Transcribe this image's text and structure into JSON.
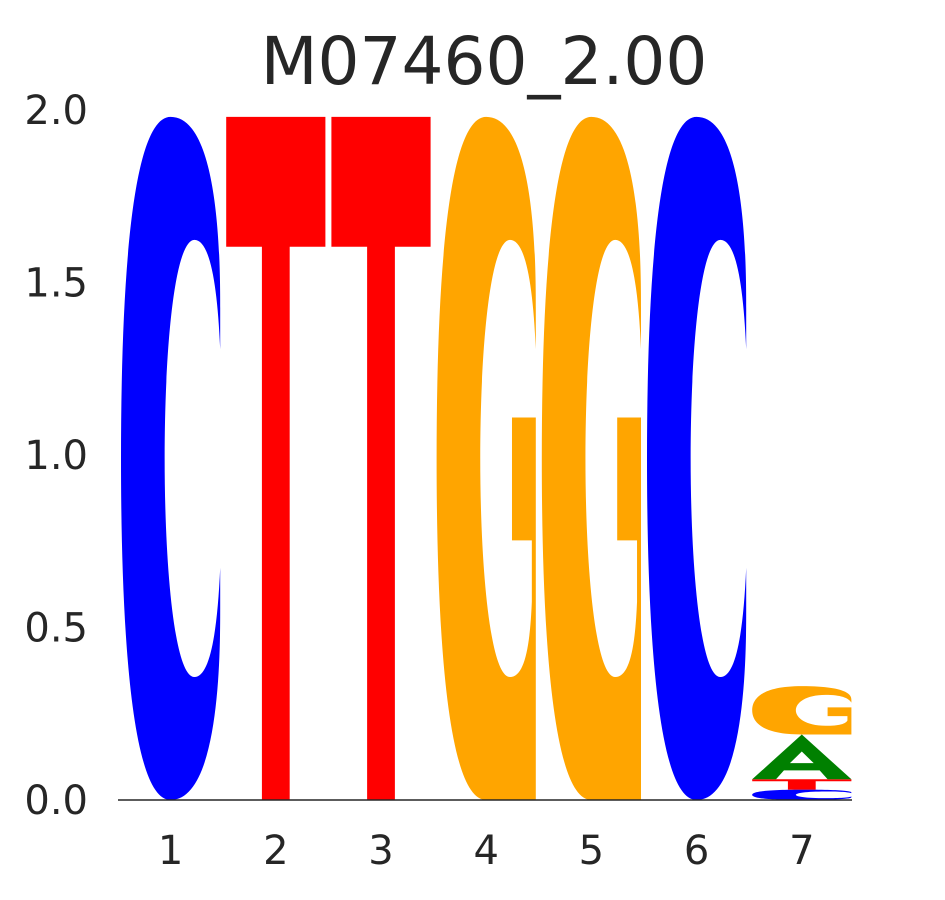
{
  "chart_data": {
    "type": "sequence-logo",
    "title": "M07460_2.00",
    "xlabel": "",
    "ylabel": "",
    "ylim": [
      0,
      2
    ],
    "y_ticks": [
      "0.0",
      "0.5",
      "1.0",
      "1.5",
      "2.0"
    ],
    "y_tick_values": [
      0,
      0.5,
      1,
      1.5,
      2
    ],
    "positions": [
      "1",
      "2",
      "3",
      "4",
      "5",
      "6",
      "7"
    ],
    "colors": {
      "A": "#008000",
      "C": "#0000ff",
      "G": "#ffa500",
      "T": "#ff0000"
    },
    "stacks": [
      [
        {
          "letter": "C",
          "height": 1.98
        }
      ],
      [
        {
          "letter": "T",
          "height": 1.98
        }
      ],
      [
        {
          "letter": "T",
          "height": 1.98
        }
      ],
      [
        {
          "letter": "G",
          "height": 1.98
        }
      ],
      [
        {
          "letter": "G",
          "height": 1.98
        }
      ],
      [
        {
          "letter": "C",
          "height": 1.98
        }
      ],
      [
        {
          "letter": "C",
          "height": 0.03
        },
        {
          "letter": "T",
          "height": 0.03
        },
        {
          "letter": "A",
          "height": 0.13
        },
        {
          "letter": "G",
          "height": 0.14
        }
      ]
    ]
  }
}
